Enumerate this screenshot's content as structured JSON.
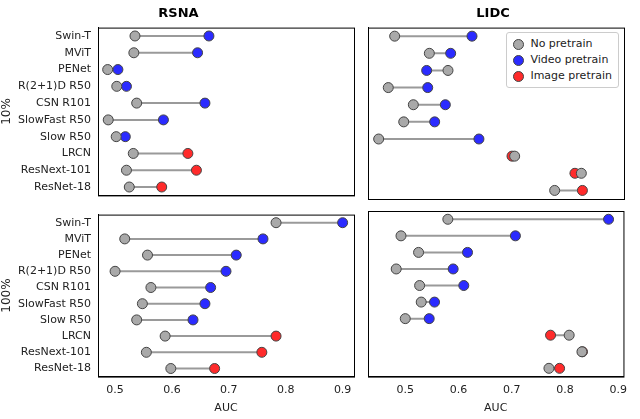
{
  "chart_data": [
    {
      "type": "dumbbell",
      "title": "RSNA",
      "ylabel": "10%",
      "categories": [
        "Swin-T",
        "MViT",
        "PENet",
        "R(2+1)D R50",
        "CSN R101",
        "SlowFast R50",
        "Slow R50",
        "LRCN",
        "ResNext-101",
        "ResNet-18"
      ],
      "series": [
        {
          "name": "No pretrain",
          "color": "#a9a9a9",
          "values": [
            0.535,
            0.533,
            0.487,
            0.503,
            0.538,
            0.488,
            0.502,
            0.532,
            0.52,
            0.525
          ]
        },
        {
          "name": "Video pretrain",
          "color": "#2b2bff",
          "values": [
            0.665,
            0.645,
            0.505,
            0.52,
            0.658,
            0.585,
            0.518,
            null,
            null,
            null
          ]
        },
        {
          "name": "Image pretrain",
          "color": "#ff2b2b",
          "values": [
            null,
            null,
            null,
            null,
            null,
            null,
            null,
            0.628,
            0.643,
            0.582
          ]
        }
      ],
      "xlim": [
        0.47,
        0.92
      ],
      "xticks": [
        0.5,
        0.6,
        0.7,
        0.8,
        0.9
      ],
      "grid": false,
      "marker": "circle",
      "tick_labels": "y"
    },
    {
      "type": "dumbbell",
      "title": "LIDC",
      "categories": [
        "Swin-T",
        "MViT",
        "PENet",
        "R(2+1)D R50",
        "CSN R101",
        "SlowFast R50",
        "Slow R50",
        "LRCN",
        "ResNext-101",
        "ResNet-18"
      ],
      "series": [
        {
          "name": "No pretrain",
          "color": "#a9a9a9",
          "values": [
            0.48,
            0.545,
            0.58,
            0.468,
            0.515,
            0.497,
            0.45,
            0.705,
            0.83,
            0.78
          ]
        },
        {
          "name": "Video pretrain",
          "color": "#2b2bff",
          "values": [
            0.625,
            0.585,
            0.54,
            0.542,
            0.575,
            0.555,
            0.638,
            null,
            null,
            null
          ]
        },
        {
          "name": "Image pretrain",
          "color": "#ff2b2b",
          "values": [
            null,
            null,
            null,
            null,
            null,
            null,
            null,
            0.7,
            0.818,
            0.832
          ]
        }
      ],
      "xlim": [
        0.43,
        0.91
      ],
      "xticks": [
        0.5,
        0.6,
        0.7,
        0.8,
        0.9
      ],
      "grid": false,
      "marker": "circle",
      "tick_labels": false,
      "legend": "upper right"
    },
    {
      "type": "dumbbell",
      "ylabel": "100%",
      "xlabel": "AUC",
      "categories": [
        "Swin-T",
        "MViT",
        "PENet",
        "R(2+1)D R50",
        "CSN R101",
        "SlowFast R50",
        "Slow R50",
        "LRCN",
        "ResNext-101",
        "ResNet-18"
      ],
      "series": [
        {
          "name": "No pretrain",
          "color": "#a9a9a9",
          "values": [
            0.783,
            0.517,
            0.557,
            0.5,
            0.563,
            0.548,
            0.538,
            0.588,
            0.555,
            0.598
          ]
        },
        {
          "name": "Video pretrain",
          "color": "#2b2bff",
          "values": [
            0.9,
            0.76,
            0.713,
            0.695,
            0.668,
            0.658,
            0.637,
            null,
            null,
            null
          ]
        },
        {
          "name": "Image pretrain",
          "color": "#ff2b2b",
          "values": [
            null,
            null,
            null,
            null,
            null,
            null,
            null,
            0.783,
            0.758,
            0.675
          ]
        }
      ],
      "xlim": [
        0.47,
        0.92
      ],
      "xticks": [
        0.5,
        0.6,
        0.7,
        0.8,
        0.9
      ],
      "grid": false,
      "marker": "circle",
      "tick_labels": true
    },
    {
      "type": "dumbbell",
      "xlabel": "AUC",
      "categories": [
        "Swin-T",
        "MViT",
        "PENet",
        "R(2+1)D R50",
        "CSN R101",
        "SlowFast R50",
        "Slow R50",
        "LRCN",
        "ResNext-101",
        "ResNet-18"
      ],
      "series": [
        {
          "name": "No pretrain",
          "color": "#a9a9a9",
          "values": [
            0.58,
            0.492,
            0.525,
            0.483,
            0.527,
            0.53,
            0.5,
            0.808,
            0.832,
            0.77
          ]
        },
        {
          "name": "Video pretrain",
          "color": "#2b2bff",
          "values": [
            0.882,
            0.707,
            0.617,
            0.59,
            0.61,
            0.555,
            0.545,
            null,
            null,
            null
          ]
        },
        {
          "name": "Image pretrain",
          "color": "#ff2b2b",
          "values": [
            null,
            null,
            null,
            null,
            null,
            null,
            null,
            0.773,
            0.833,
            0.79
          ]
        }
      ],
      "xlim": [
        0.43,
        0.91
      ],
      "xticks": [
        0.5,
        0.6,
        0.7,
        0.8,
        0.9
      ],
      "grid": false,
      "marker": "circle",
      "tick_labels": "x"
    }
  ]
}
